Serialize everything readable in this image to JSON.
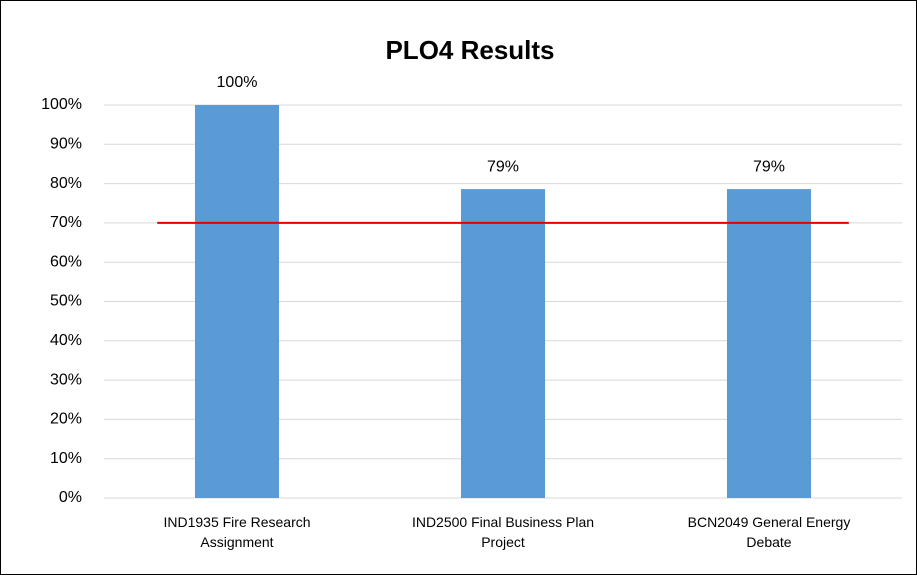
{
  "chart_data": {
    "type": "bar",
    "title": "PLO4 Results",
    "categories": [
      "IND1935 Fire Research Assignment",
      "IND2500 Final Business Plan Project",
      "BCN2049 General Energy Debate"
    ],
    "values": [
      100,
      78.6,
      78.6
    ],
    "value_labels": [
      "100%",
      "79%",
      "79%"
    ],
    "color": "#5b9bd5",
    "ylim": [
      0,
      100
    ],
    "yticks": [
      {
        "value": 0,
        "label": "0%"
      },
      {
        "value": 10,
        "label": "10%"
      },
      {
        "value": 20,
        "label": "20%"
      },
      {
        "value": 30,
        "label": "30%"
      },
      {
        "value": 40,
        "label": "40%"
      },
      {
        "value": 50,
        "label": "50%"
      },
      {
        "value": 60,
        "label": "60%"
      },
      {
        "value": 70,
        "label": "70%"
      },
      {
        "value": 80,
        "label": "80%"
      },
      {
        "value": 90,
        "label": "90%"
      },
      {
        "value": 100,
        "label": "100%"
      }
    ],
    "grid": true,
    "reference_line": {
      "value": 70,
      "color": "#e00000"
    }
  }
}
